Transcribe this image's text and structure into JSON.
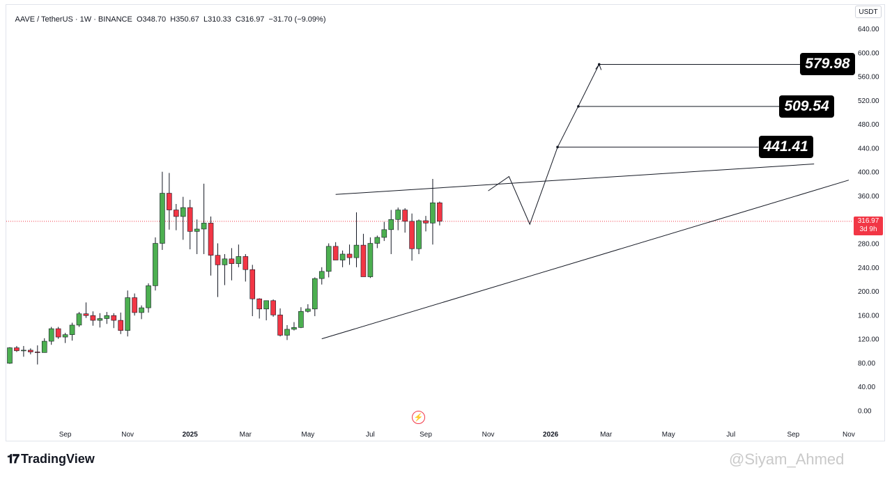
{
  "header": {
    "symbol_line": "AAVE / TetherUS · 1W · BINANCE",
    "ohlc": "O348.70  H350.67  L310.33  C316.97  −31.70 (−9.09%)"
  },
  "currency_label": "USDT",
  "current_price": {
    "value": "316.97",
    "countdown": "3d 9h"
  },
  "targets": [
    "579.98",
    "509.54",
    "441.41"
  ],
  "brand": "TradingView",
  "watermark": "@Siyam_Ahmed",
  "colors": {
    "up": "#4caf50",
    "down": "#f23645",
    "line": "#131722",
    "grid_text": "#131722"
  },
  "chart_data": {
    "type": "candlestick",
    "y_ticks": [
      "640.00",
      "600.00",
      "560.00",
      "520.00",
      "480.00",
      "440.00",
      "400.00",
      "360.00",
      "320.00",
      "280.00",
      "240.00",
      "200.00",
      "160.00",
      "120.00",
      "80.00",
      "40.00",
      "0.00"
    ],
    "x_ticks": [
      {
        "label": "Sep",
        "bold": false,
        "week": 8
      },
      {
        "label": "Nov",
        "bold": false,
        "week": 17
      },
      {
        "label": "2025",
        "bold": true,
        "week": 26
      },
      {
        "label": "Mar",
        "bold": false,
        "week": 34
      },
      {
        "label": "May",
        "bold": false,
        "week": 43
      },
      {
        "label": "Jul",
        "bold": false,
        "week": 52
      },
      {
        "label": "Sep",
        "bold": false,
        "week": 60
      },
      {
        "label": "Nov",
        "bold": false,
        "week": 69
      },
      {
        "label": "2026",
        "bold": true,
        "week": 78
      },
      {
        "label": "Mar",
        "bold": false,
        "week": 86
      },
      {
        "label": "May",
        "bold": false,
        "week": 95
      },
      {
        "label": "Jul",
        "bold": false,
        "week": 104
      },
      {
        "label": "Sep",
        "bold": false,
        "week": 113
      },
      {
        "label": "Nov",
        "bold": false,
        "week": 121
      }
    ],
    "ylim": [
      0,
      640
    ],
    "current_price": 316.97,
    "candles": [
      [
        79,
        106,
        78,
        105
      ],
      [
        105,
        108,
        98,
        100
      ],
      [
        100,
        108,
        90,
        101
      ],
      [
        101,
        104,
        94,
        98
      ],
      [
        98,
        109,
        77,
        97
      ],
      [
        97,
        121,
        97,
        116
      ],
      [
        116,
        140,
        110,
        137
      ],
      [
        137,
        140,
        120,
        123
      ],
      [
        123,
        130,
        113,
        127
      ],
      [
        127,
        147,
        117,
        143
      ],
      [
        143,
        165,
        140,
        162
      ],
      [
        162,
        181,
        155,
        159
      ],
      [
        159,
        166,
        142,
        151
      ],
      [
        151,
        163,
        139,
        154
      ],
      [
        154,
        165,
        145,
        159
      ],
      [
        159,
        163,
        138,
        151
      ],
      [
        151,
        164,
        128,
        134
      ],
      [
        134,
        201,
        124,
        189
      ],
      [
        189,
        196,
        159,
        164
      ],
      [
        164,
        176,
        153,
        172
      ],
      [
        172,
        213,
        164,
        209
      ],
      [
        209,
        290,
        201,
        280
      ],
      [
        280,
        400,
        269,
        364
      ],
      [
        364,
        398,
        303,
        336
      ],
      [
        336,
        346,
        302,
        325
      ],
      [
        325,
        358,
        286,
        340
      ],
      [
        340,
        353,
        270,
        300
      ],
      [
        300,
        320,
        262,
        304
      ],
      [
        304,
        380,
        262,
        314
      ],
      [
        314,
        325,
        226,
        260
      ],
      [
        260,
        280,
        190,
        244
      ],
      [
        244,
        262,
        210,
        254
      ],
      [
        254,
        272,
        218,
        246
      ],
      [
        246,
        278,
        240,
        258
      ],
      [
        258,
        262,
        216,
        236
      ],
      [
        236,
        244,
        158,
        187
      ],
      [
        187,
        188,
        154,
        170
      ],
      [
        170,
        179,
        151,
        184
      ],
      [
        184,
        186,
        157,
        160
      ],
      [
        160,
        171,
        124,
        126
      ],
      [
        126,
        143,
        118,
        136
      ],
      [
        136,
        148,
        134,
        139
      ],
      [
        139,
        173,
        138,
        166
      ],
      [
        166,
        178,
        164,
        170
      ],
      [
        170,
        223,
        158,
        221
      ],
      [
        221,
        240,
        211,
        233
      ],
      [
        233,
        280,
        223,
        275
      ],
      [
        275,
        282,
        258,
        252
      ],
      [
        252,
        268,
        240,
        262
      ],
      [
        262,
        278,
        244,
        256
      ],
      [
        256,
        332,
        240,
        277
      ],
      [
        277,
        296,
        230,
        224
      ],
      [
        224,
        290,
        222,
        280
      ],
      [
        280,
        293,
        272,
        290
      ],
      [
        290,
        316,
        284,
        303
      ],
      [
        303,
        336,
        262,
        320
      ],
      [
        320,
        340,
        302,
        336
      ],
      [
        336,
        339,
        298,
        317
      ],
      [
        317,
        330,
        251,
        271
      ],
      [
        271,
        320,
        262,
        318
      ],
      [
        318,
        326,
        300,
        314
      ],
      [
        314,
        388,
        278,
        348
      ],
      [
        348,
        350,
        310,
        317
      ]
    ],
    "trendlines": [
      {
        "from": [
          47,
          362
        ],
        "to": [
          116,
          413
        ]
      },
      {
        "from": [
          45,
          120
        ],
        "to": [
          121,
          386
        ]
      },
      {
        "from": [
          75,
          0
        ],
        "to": [
          75,
          0
        ]
      }
    ],
    "projection_path": [
      [
        69,
        368
      ],
      [
        72,
        392
      ],
      [
        75,
        312
      ],
      [
        79,
        441
      ],
      [
        82,
        510
      ],
      [
        85,
        580
      ]
    ],
    "target_levels": [
      {
        "price": 579.98,
        "start_week": 85,
        "end_week": 114
      },
      {
        "price": 509.54,
        "start_week": 82,
        "end_week": 111
      },
      {
        "price": 441.41,
        "start_week": 79,
        "end_week": 108
      }
    ]
  }
}
